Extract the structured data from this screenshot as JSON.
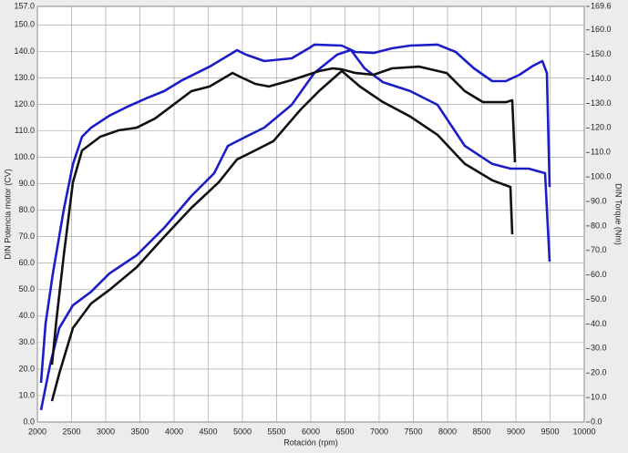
{
  "chart_data": {
    "type": "line",
    "x_label": "Rotación (rpm)",
    "y_label": "DIN Potencia motor (CV)",
    "y2_label": "DIN Torque (Nm)",
    "grid": true,
    "xlim": [
      2000,
      10000
    ],
    "xticks": [
      2000,
      2500,
      3000,
      3500,
      4000,
      4500,
      5000,
      5500,
      6000,
      6500,
      7000,
      7500,
      8000,
      8500,
      9000,
      9500,
      10000
    ],
    "ylim": [
      0,
      157
    ],
    "yticks": [
      {
        "value": 0,
        "label": "0.0"
      },
      {
        "value": 10,
        "label": "10.0"
      },
      {
        "value": 20,
        "label": "20.0"
      },
      {
        "value": 30,
        "label": "30.0"
      },
      {
        "value": 40,
        "label": "40.0"
      },
      {
        "value": 50,
        "label": "50.0"
      },
      {
        "value": 60,
        "label": "60.0"
      },
      {
        "value": 70,
        "label": "70.0"
      },
      {
        "value": 80,
        "label": "80.0"
      },
      {
        "value": 90,
        "label": "90.0"
      },
      {
        "value": 100,
        "label": "100.0"
      },
      {
        "value": 110,
        "label": "110.0"
      },
      {
        "value": 120,
        "label": "120.0"
      },
      {
        "value": 130,
        "label": "130.0"
      },
      {
        "value": 140,
        "label": "140.0"
      },
      {
        "value": 150,
        "label": "150.0"
      },
      {
        "value": 157,
        "label": "157.0"
      }
    ],
    "y2lim": [
      0,
      169.6
    ],
    "y2ticks": [
      {
        "value": 0,
        "label": "0.0"
      },
      {
        "value": 10,
        "label": "10.0"
      },
      {
        "value": 20,
        "label": "20.0"
      },
      {
        "value": 30,
        "label": "30.0"
      },
      {
        "value": 40,
        "label": "40.0"
      },
      {
        "value": 50,
        "label": "50.0"
      },
      {
        "value": 60,
        "label": "60.0"
      },
      {
        "value": 70,
        "label": "70.0"
      },
      {
        "value": 80,
        "label": "80.0"
      },
      {
        "value": 90,
        "label": "90.0"
      },
      {
        "value": 100,
        "label": "100.0"
      },
      {
        "value": 110,
        "label": "110.0"
      },
      {
        "value": 120,
        "label": "120.0"
      },
      {
        "value": 130,
        "label": "130.0"
      },
      {
        "value": 140,
        "label": "140.0"
      },
      {
        "value": 150,
        "label": "150.0"
      },
      {
        "value": 160,
        "label": "160.0"
      },
      {
        "value": 169.6,
        "label": "169.6"
      }
    ],
    "series": [
      {
        "color": "#1c1cc8",
        "axis": "y2",
        "x": [
          2053,
          2120,
          2227,
          2387,
          2520,
          2653,
          2787,
          3053,
          3320,
          3587,
          3853,
          4120,
          4520,
          4853,
          4920,
          5053,
          5320,
          5720,
          5987,
          6053,
          6453,
          6653,
          6920,
          7187,
          7453,
          7853,
          8120,
          8387,
          8653,
          8853,
          9053,
          9253,
          9387,
          9453,
          9493
        ],
        "values": [
          16.0,
          40.2,
          60.6,
          86.7,
          105.2,
          116.4,
          120.1,
          125.0,
          128.7,
          132.0,
          135.0,
          139.5,
          145.0,
          150.6,
          151.7,
          149.9,
          147.3,
          148.4,
          152.8,
          154.0,
          153.6,
          151.0,
          150.6,
          152.5,
          153.6,
          154.0,
          151.0,
          144.3,
          139.1,
          139.1,
          141.7,
          145.4,
          147.3,
          142.4,
          95.9
        ]
      },
      {
        "color": "#1c1cc8",
        "x": [
          2053,
          2187,
          2320,
          2520,
          2787,
          3053,
          3453,
          3853,
          4253,
          4587,
          4787,
          5053,
          5320,
          5720,
          6053,
          6387,
          6587,
          6787,
          7053,
          7453,
          7853,
          8253,
          8653,
          8920,
          9187,
          9427,
          9493
        ],
        "values": [
          4.5,
          21.7,
          35.5,
          44.1,
          49.2,
          56.1,
          63.0,
          73.3,
          85.4,
          94.0,
          104.3,
          107.8,
          111.2,
          119.8,
          131.9,
          138.8,
          140.5,
          133.6,
          128.4,
          125.0,
          119.8,
          104.3,
          97.5,
          95.7,
          95.7,
          94.0,
          60.6
        ]
      },
      {
        "color": "#111111",
        "axis": "y2",
        "x": [
          2213,
          2280,
          2387,
          2520,
          2653,
          2920,
          3187,
          3453,
          3720,
          3987,
          4253,
          4520,
          4853,
          4987,
          5187,
          5387,
          5720,
          6120,
          6320,
          6453,
          6653,
          6920,
          7187,
          7587,
          7987,
          8253,
          8520,
          8853,
          8947,
          8987
        ],
        "values": [
          23.4,
          42.0,
          68.1,
          97.8,
          110.8,
          116.4,
          119.0,
          120.1,
          123.8,
          129.4,
          135.0,
          136.9,
          142.4,
          140.6,
          138.0,
          136.9,
          139.5,
          143.2,
          144.3,
          143.9,
          142.4,
          141.7,
          144.3,
          145.0,
          142.4,
          135.0,
          130.5,
          130.5,
          131.3,
          106.0
        ]
      },
      {
        "color": "#111111",
        "x": [
          2213,
          2320,
          2520,
          2787,
          3053,
          3453,
          3853,
          4253,
          4653,
          4920,
          5187,
          5453,
          5853,
          6120,
          6453,
          6720,
          7053,
          7453,
          7853,
          8253,
          8653,
          8920,
          8947
        ],
        "values": [
          7.9,
          18.3,
          35.5,
          44.8,
          49.9,
          58.5,
          69.9,
          80.9,
          90.6,
          99.2,
          102.6,
          106.1,
          118.1,
          125.0,
          132.6,
          126.7,
          120.9,
          115.4,
          108.5,
          97.5,
          91.3,
          88.8,
          70.9
        ]
      }
    ]
  }
}
